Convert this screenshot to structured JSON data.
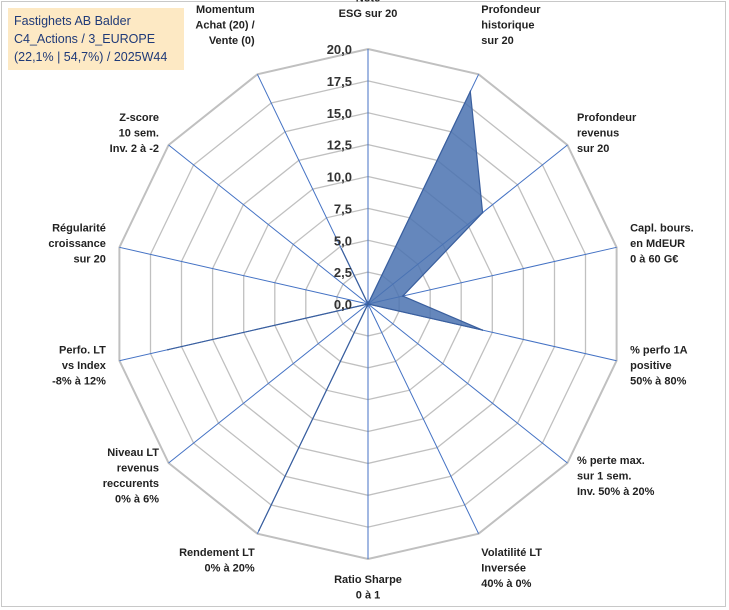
{
  "title": {
    "line1": "Fastighets AB Balder",
    "line2": "C4_Actions / 3_EUROPE",
    "line3": "(22,1% | 54,7%) / 2025W44"
  },
  "colors": {
    "fill": "#4a72b0",
    "stroke": "#3a5f9e",
    "grid": "#c0c0c0",
    "spoke": "#4472c4"
  },
  "chart_data": {
    "type": "radar",
    "rmin": 0,
    "rmax": 20,
    "tick_labels": [
      "0,0",
      "2,5",
      "5,0",
      "7,5",
      "10,0",
      "12,5",
      "15,0",
      "17,5",
      "20,0"
    ],
    "axes": [
      {
        "lines": [
          "Note",
          "ESG sur 20"
        ],
        "value": 0
      },
      {
        "lines": [
          "Profondeur",
          "historique",
          "sur 20"
        ],
        "value": 18.5
      },
      {
        "lines": [
          "Profondeur",
          "revenus",
          "sur 20"
        ],
        "value": 11.5
      },
      {
        "lines": [
          "Capl. bours.",
          "en MdEUR",
          "0 à 60 G€"
        ],
        "value": 2.8
      },
      {
        "lines": [
          "% perfo 1A",
          "positive",
          "50% à 80%"
        ],
        "value": 9.2
      },
      {
        "lines": [
          "% perte max.",
          "sur 1 sem.",
          "Inv. 50% à 20%"
        ],
        "value": 0
      },
      {
        "lines": [
          "Volatilité LT",
          "Inversée",
          "40% à 0%"
        ],
        "value": 0
      },
      {
        "lines": [
          "Ratio Sharpe",
          "0 à 1"
        ],
        "value": 0
      },
      {
        "lines": [
          "Rendement LT",
          "0% à 20%"
        ],
        "value": 19.7
      },
      {
        "lines": [
          "Niveau LT",
          "revenus",
          "reccurents",
          "0% à 6%"
        ],
        "value": 0
      },
      {
        "lines": [
          "Perfo. LT",
          "vs Index",
          "-8% à 12%"
        ],
        "value": 16.1
      },
      {
        "lines": [
          "Régularité",
          "croissance",
          "sur 20"
        ],
        "value": 0
      },
      {
        "lines": [
          "Z-score",
          "10 sem.",
          "Inv. 2 à -2"
        ],
        "value": 0
      },
      {
        "lines": [
          "Momentum",
          "Achat (20) /",
          "Vente (0)"
        ],
        "value": 4.8
      }
    ]
  }
}
